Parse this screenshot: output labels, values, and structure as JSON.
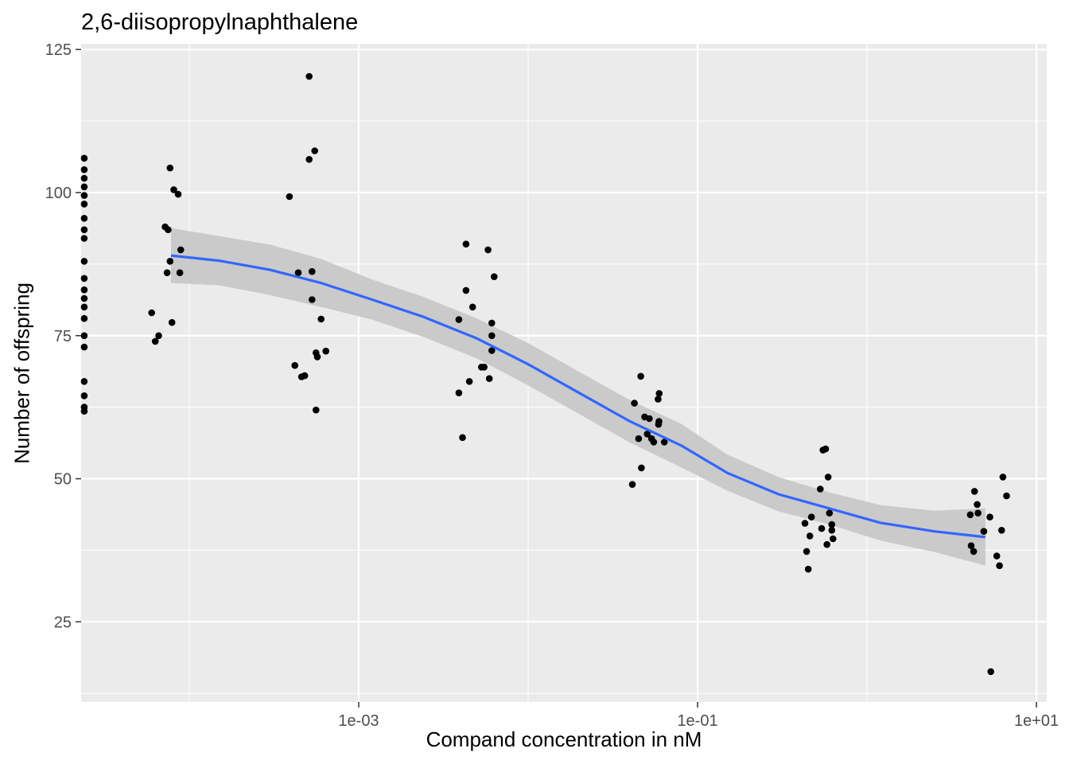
{
  "chart_data": {
    "type": "scatter",
    "title": "2,6-diisopropylnaphthalene",
    "xlabel": "Compand concentration in nM",
    "ylabel": "Number of offspring",
    "x_scale": "log10",
    "xlim": [
      2.3e-05,
      11.5
    ],
    "ylim": [
      11,
      126
    ],
    "x_ticks": [
      {
        "value": 0.001,
        "label": "1e-03"
      },
      {
        "value": 0.1,
        "label": "1e-01"
      },
      {
        "value": 10,
        "label": "1e+01"
      }
    ],
    "y_ticks": [
      {
        "value": 25,
        "label": "25"
      },
      {
        "value": 50,
        "label": "50"
      },
      {
        "value": 75,
        "label": "75"
      },
      {
        "value": 100,
        "label": "100"
      },
      {
        "value": 125,
        "label": "125"
      }
    ],
    "grid": true,
    "legend": "none",
    "colors": {
      "panel": "#ebebeb",
      "grid": "#ffffff",
      "points": "#000000",
      "smooth_line": "#3366ff",
      "confidence_band": "#c8c8c8"
    },
    "points": [
      {
        "x": 2.4e-05,
        "y": 106
      },
      {
        "x": 2.4e-05,
        "y": 104
      },
      {
        "x": 2.4e-05,
        "y": 102.5
      },
      {
        "x": 2.4e-05,
        "y": 101
      },
      {
        "x": 2.4e-05,
        "y": 99.5
      },
      {
        "x": 2.4e-05,
        "y": 98
      },
      {
        "x": 2.4e-05,
        "y": 95.5
      },
      {
        "x": 2.4e-05,
        "y": 93.5
      },
      {
        "x": 2.4e-05,
        "y": 92
      },
      {
        "x": 2.4e-05,
        "y": 88
      },
      {
        "x": 2.4e-05,
        "y": 85
      },
      {
        "x": 2.4e-05,
        "y": 83
      },
      {
        "x": 2.4e-05,
        "y": 81.5
      },
      {
        "x": 2.4e-05,
        "y": 80
      },
      {
        "x": 2.4e-05,
        "y": 78
      },
      {
        "x": 2.4e-05,
        "y": 75
      },
      {
        "x": 2.4e-05,
        "y": 73
      },
      {
        "x": 2.4e-05,
        "y": 67
      },
      {
        "x": 2.4e-05,
        "y": 64.5
      },
      {
        "x": 2.4e-05,
        "y": 62.5
      },
      {
        "x": 2.4e-05,
        "y": 61.8
      },
      {
        "x": 6e-05,
        "y": 79
      },
      {
        "x": 6.3e-05,
        "y": 74
      },
      {
        "x": 6.6e-05,
        "y": 75
      },
      {
        "x": 7.2e-05,
        "y": 94
      },
      {
        "x": 7.4e-05,
        "y": 86
      },
      {
        "x": 7.5e-05,
        "y": 93.5
      },
      {
        "x": 7.7e-05,
        "y": 88
      },
      {
        "x": 7.7e-05,
        "y": 104.3
      },
      {
        "x": 7.9e-05,
        "y": 77.3
      },
      {
        "x": 8.1e-05,
        "y": 100.5
      },
      {
        "x": 8.6e-05,
        "y": 99.7
      },
      {
        "x": 8.8e-05,
        "y": 86
      },
      {
        "x": 8.9e-05,
        "y": 90
      },
      {
        "x": 0.00039,
        "y": 99.3
      },
      {
        "x": 0.00042,
        "y": 69.8
      },
      {
        "x": 0.00044,
        "y": 86
      },
      {
        "x": 0.00046,
        "y": 67.8
      },
      {
        "x": 0.00048,
        "y": 68
      },
      {
        "x": 0.00051,
        "y": 105.8
      },
      {
        "x": 0.00051,
        "y": 120.3
      },
      {
        "x": 0.00053,
        "y": 81.3
      },
      {
        "x": 0.00053,
        "y": 86.2
      },
      {
        "x": 0.00055,
        "y": 107.3
      },
      {
        "x": 0.00056,
        "y": 72
      },
      {
        "x": 0.00056,
        "y": 62
      },
      {
        "x": 0.00057,
        "y": 71.3
      },
      {
        "x": 0.0006,
        "y": 77.9
      },
      {
        "x": 0.00064,
        "y": 72.3
      },
      {
        "x": 0.0039,
        "y": 65
      },
      {
        "x": 0.0039,
        "y": 77.8
      },
      {
        "x": 0.0041,
        "y": 57.2
      },
      {
        "x": 0.0043,
        "y": 91
      },
      {
        "x": 0.0043,
        "y": 82.9
      },
      {
        "x": 0.0045,
        "y": 67
      },
      {
        "x": 0.0047,
        "y": 80
      },
      {
        "x": 0.0053,
        "y": 69.5
      },
      {
        "x": 0.0055,
        "y": 69.5
      },
      {
        "x": 0.0058,
        "y": 90
      },
      {
        "x": 0.0059,
        "y": 67.5
      },
      {
        "x": 0.0061,
        "y": 75
      },
      {
        "x": 0.0061,
        "y": 72.4
      },
      {
        "x": 0.0061,
        "y": 77.2
      },
      {
        "x": 0.0063,
        "y": 85.3
      },
      {
        "x": 0.0412,
        "y": 49
      },
      {
        "x": 0.0424,
        "y": 63.2
      },
      {
        "x": 0.0449,
        "y": 57
      },
      {
        "x": 0.0462,
        "y": 67.9
      },
      {
        "x": 0.0466,
        "y": 51.9
      },
      {
        "x": 0.0487,
        "y": 60.8
      },
      {
        "x": 0.0505,
        "y": 57.8
      },
      {
        "x": 0.0519,
        "y": 60.5
      },
      {
        "x": 0.0535,
        "y": 57
      },
      {
        "x": 0.0551,
        "y": 56.4
      },
      {
        "x": 0.0585,
        "y": 63.9
      },
      {
        "x": 0.0588,
        "y": 59.5
      },
      {
        "x": 0.0592,
        "y": 60
      },
      {
        "x": 0.0594,
        "y": 64.9
      },
      {
        "x": 0.0636,
        "y": 56.4
      },
      {
        "x": 0.43,
        "y": 42.2
      },
      {
        "x": 0.44,
        "y": 37.3
      },
      {
        "x": 0.45,
        "y": 34.2
      },
      {
        "x": 0.46,
        "y": 40
      },
      {
        "x": 0.47,
        "y": 43.3
      },
      {
        "x": 0.53,
        "y": 48.2
      },
      {
        "x": 0.54,
        "y": 41.3
      },
      {
        "x": 0.55,
        "y": 55
      },
      {
        "x": 0.57,
        "y": 55.2
      },
      {
        "x": 0.58,
        "y": 38.5
      },
      {
        "x": 0.59,
        "y": 50.3
      },
      {
        "x": 0.6,
        "y": 44
      },
      {
        "x": 0.62,
        "y": 42
      },
      {
        "x": 0.62,
        "y": 41
      },
      {
        "x": 0.63,
        "y": 39.5
      },
      {
        "x": 4.07,
        "y": 43.7
      },
      {
        "x": 4.12,
        "y": 38.3
      },
      {
        "x": 4.26,
        "y": 37.3
      },
      {
        "x": 4.31,
        "y": 47.8
      },
      {
        "x": 4.47,
        "y": 45.5
      },
      {
        "x": 4.52,
        "y": 44
      },
      {
        "x": 4.89,
        "y": 40.8
      },
      {
        "x": 5.31,
        "y": 43.3
      },
      {
        "x": 5.38,
        "y": 16.3
      },
      {
        "x": 5.83,
        "y": 36.5
      },
      {
        "x": 6.05,
        "y": 34.8
      },
      {
        "x": 6.23,
        "y": 41
      },
      {
        "x": 6.34,
        "y": 50.3
      },
      {
        "x": 6.66,
        "y": 47
      }
    ],
    "smooth": {
      "method": "loess",
      "x": [
        7.8e-05,
        0.00015,
        0.0003,
        0.0006,
        0.0012,
        0.0024,
        0.005,
        0.01,
        0.02,
        0.04,
        0.08,
        0.15,
        0.3,
        0.6,
        1.2,
        2.5,
        5.0
      ],
      "y": [
        89,
        88.1,
        86.5,
        84.2,
        81.3,
        78.3,
        74.5,
        70.0,
        65.0,
        60.0,
        55.8,
        51.0,
        47.3,
        44.8,
        42.3,
        40.8,
        39.8
      ],
      "ymin": [
        84.2,
        83.8,
        82.1,
        80.0,
        77.8,
        74.8,
        71.0,
        66.3,
        61.3,
        56.3,
        52.0,
        47.9,
        44.3,
        42.0,
        39.2,
        37.2,
        34.8
      ],
      "ymax": [
        93.8,
        92.4,
        90.9,
        88.4,
        84.8,
        81.8,
        78.0,
        73.7,
        68.7,
        63.7,
        59.6,
        54.2,
        50.3,
        47.6,
        45.4,
        44.4,
        44.8
      ]
    }
  }
}
